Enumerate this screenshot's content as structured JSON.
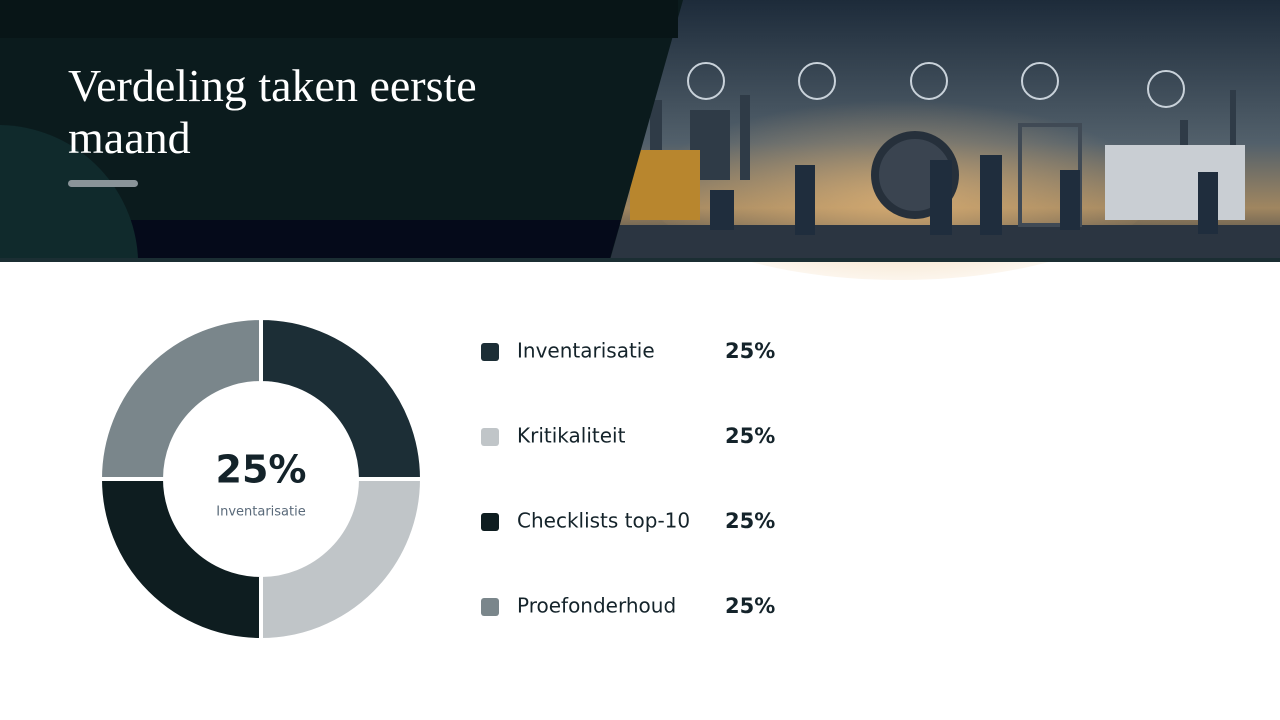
{
  "chart_data": {
    "type": "donut",
    "title": "Verdeling taken eerste maand",
    "categories": [
      "Inventarisatie",
      "Kritikaliteit",
      "Checklists top-10",
      "Proefonderhoud"
    ],
    "values": [
      25,
      25,
      25,
      25
    ],
    "value_labels": [
      "25%",
      "25%",
      "25%",
      "25%"
    ],
    "colors": [
      "#1c2e36",
      "#c0c5c8",
      "#0e1d20",
      "#7a868b"
    ]
  }
}
